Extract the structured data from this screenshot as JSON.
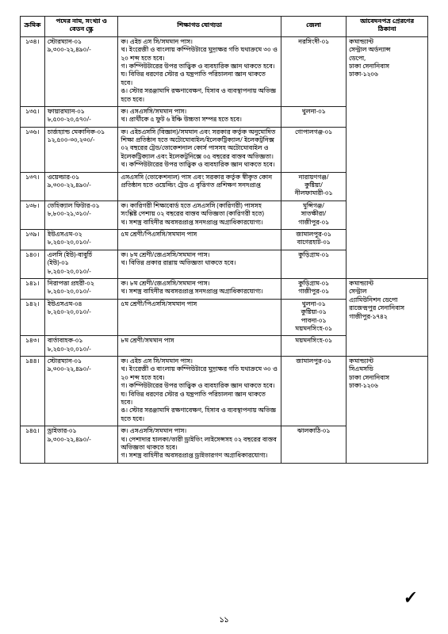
{
  "headers": {
    "serial": "ক্রমিক",
    "post": "পদের নাম, সংখ্যা ও\nবেতন স্কেল",
    "qual": "শিক্ষাগত যোগ্যতা",
    "dist": "জেলা",
    "addr": "আবেদনপত্র প্রেরণের\nঠিকানা"
  },
  "rows": [
    {
      "serial": "১৩৪।",
      "post": "স্টোরম্যান-০১\n৯,৩০০-২২,৪৯০/-",
      "qual": "ক। এইচ এস সি/সমমান পাস।\nখ। ইংরেজী ও বাংলায় কম্পিউটারে মুদ্রাক্ষর গতি যথাক্রমে ৩০ ও ২০ শব্দ হতে হবে।\nগ। কম্পিউটারের উপর তাত্ত্বিক ও ব্যবহারিক জ্ঞান থাকতে হবে।\nঘ। বিভিন্ন ধরণের স্টোর ও যন্ত্রপাতি পরিচালনা জ্ঞান থাকতে হবে।\nঙ। স্টোর সরঞ্জামাদি রক্ষণাবেক্ষণ, হিসাব ও ব্যবস্থাপনায় অভিজ্ঞ হতে হবে।",
      "dist": "নরসিংদী-০১"
    },
    {
      "serial": "১৩৫।",
      "post": "ফায়ারম্যান-০১\n৮,৫০০-২০,৫৭০/-",
      "qual": "ক। এসএসসি/সমমান পাস।\nখ। প্রার্থীকে ৫ ফুট ৬ ইঞ্চি উচ্চতা সম্পন্ন হতে হবে।",
      "dist": "খুলনা-০১"
    },
    {
      "serial": "১৩৬।",
      "post": "চার্জহ্যান্ড মেকানিক-০১\n১২,৫০০-৩০,২৩০/-",
      "qual": "ক। এইচএসসি (বিজ্ঞান)/সমমান এবং সরকার কর্তৃক অনুমোদিত শিক্ষা প্রতিষ্ঠান হতে অটোমোবাইল/ইলেকট্রিক্যাল/ ইলেকট্রনিক্স ০২ বছরের ট্রেড/ভোকেশনাল কোর্স পাসসহ অটোমোবাইল ও ইলেকট্রিক্যাল এবং ইলেকট্রনিক্সে ০৫ বছরের বাস্তব অভিজ্ঞতা।\nখ। কম্পিউটারের উপর তাত্ত্বিক ও ব্যবহারিক জ্ঞান থাকতে হবে।",
      "dist": "গোপালগঞ্জ-০১"
    },
    {
      "serial": "১৩৭।",
      "post": "ওয়েল্ডার-০১\n৯,৩০০-২২,৪৯০/-",
      "qual": "এসএসসি (ভোকেশনাল) পাস এবং সরকার কর্তৃক স্বীকৃত কোন প্রতিষ্ঠান হতে ওয়েল্ডিং ট্রেড এ বৃত্তিগত প্রশিক্ষণ সনদপ্রাপ্ত",
      "dist": "নারায়ণগঞ্জ/\nকুষ্টিয়া/\nনীলফামারী-০১"
    },
    {
      "serial": "১৩৮।",
      "post": "ভেহিক্যাল ফিটার-০১\n৮,৮০০-২১,৩১০/-",
      "qual": "ক। কারিগরী শিক্ষাবোর্ড হতে এসএসসি (কারিগরী) পাসসহ সংশ্লিষ্ট পেশায় ০২ বছরের বাস্তব অভিজ্ঞতা (কারিগরী হতে)\nখ। সশস্ত্র বাহিনীর অবসরপ্রাপ্ত সনদপ্রাপ্ত অগ্রাধিকারযোগ্য।",
      "dist": "মুন্সিগঞ্জ/\nসাতক্ষীরা/\nগাজীপুর-০১"
    },
    {
      "serial": "১৩৯।",
      "post": "ইউএসএম-০২\n৮,২৫০-২০,০১০/-",
      "qual": "৫ম শ্রেণী/পিএসসি/সমমান পাস",
      "dist": "জামালপুর-০১\nবাগেরহাট-০১"
    },
    {
      "serial": "১৪০।",
      "post": "এলসি (ইউ)-বাবুর্চি\n(ইউ)-০১\n৮,২৫০-২০,০১০/-",
      "qual": "ক। ৮ম শ্রেণী/জেএসসি/সমমান পাস।\nখ। বিভিন্ন প্রকার রান্নায় অভিজ্ঞতা থাকতে হবে।",
      "dist": "কুড়িগ্রাম-০১"
    },
    {
      "serial": "১৪১।",
      "post": "নিরাপত্তা প্রহরী-০২\n৮,২৫০-২০,০১০/-",
      "qual": "ক। ৮ম শ্রেণী/জেএসসি/সমমান পাস।\nখ। সশস্ত্র বাহিনীর অবসরপ্রাপ্ত সনদপ্রাপ্ত অগ্রাধিকারযোগ্য।",
      "dist": "কুড়িগ্রাম-০১\nগাজীপুর-০১"
    },
    {
      "serial": "১৪২।",
      "post": "ইউএসএম-০৪\n৮,২৫০-২০,০১০/-",
      "qual": "৫ম শ্রেণী/পিএসসি/সমমান পাস",
      "dist": "খুলনা-০১\nকুষ্টিয়া-০১\nপাবনা-০১\nময়মনসিংহ-০১"
    },
    {
      "serial": "১৪৩।",
      "post": "বার্তাবাহক-০১\n৮,২৫০-২০,০১০/-",
      "qual": "৮ম শ্রেণী/সমমান পাস",
      "dist": "ময়মনসিংহ-০১"
    },
    {
      "serial": "১৪৪।",
      "post": "স্টোরম্যান-০১\n৯,৩০০-২২,৪৯০/-",
      "qual": "ক। এইচ এস সি/সমমান পাস।\nখ। ইংরেজী ও বাংলায় কম্পিউটারে মুদ্রাক্ষর গতি যথাক্রমে ৩০ ও ২০ শব্দ হতে হবে।\nগ। কম্পিউটারের উপর তাত্ত্বিক ও ব্যবহারিক জ্ঞান থাকতে হবে।\nঘ। বিভিন্ন ধরণের স্টোর ও যন্ত্রপাতি পরিচালনা জ্ঞান থাকতে হবে।\nঙ। স্টোর সরঞ্জামাদি রক্ষণাবেক্ষণ, হিসাব ও ব্যবস্থাপনায় অভিজ্ঞ হতে হবে।",
      "dist": "জামালপুর-০১"
    },
    {
      "serial": "১৪৫।",
      "post": "ড্রাইভার-০১\n৯,৩০০-২২,৪৯০/-",
      "qual": "ক। এসএসসি/সমমান পাস।\nখ। পেশাদার হালকা/ভারী ড্রাইভিং লাইসেন্সসহ ০২ বছরের বাস্তব অভিজ্ঞতা থাকতে হবে।\nগ। সশস্ত্র বাহিনীর অবসরপ্রাপ্ত ড্রাইভারগণ অগ্রাধিকারযোগ্য।",
      "dist": "ঝালকাঠি-০১"
    }
  ],
  "addr_groups": [
    {
      "span": 7,
      "text": "কমান্ড্যান্ট\nসেন্ট্রাল অর্ডন্যান্স\nডেপো,\nঢাকা সেনানিবাস\nঢাকা-১২০৬"
    },
    {
      "span": 3,
      "text": "কমান্ড্যান্ট\nসেন্ট্রাল\nএ্যামিউনিশন ডেপো\nরাজেন্দ্রপুর সেনানিবাস\nগাজীপুর-১৭৪২"
    },
    {
      "span": 2,
      "text": "কমান্ড্যান্ট\nসিএমসডি\nঢাকা সেনানিবাস\nঢাকা-১২০৬"
    }
  ],
  "pageno": "১১",
  "signature": "✔"
}
